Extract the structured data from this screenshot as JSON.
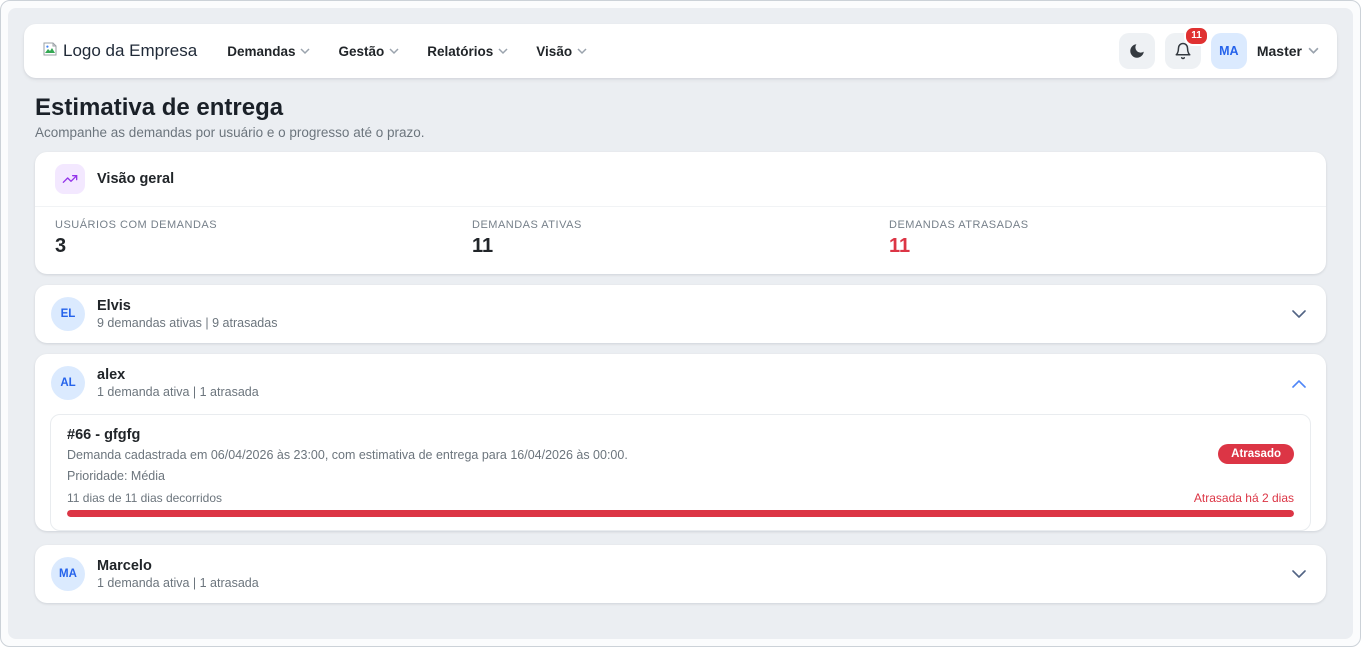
{
  "navbar": {
    "logo_alt": "Logo da Empresa",
    "menu": [
      {
        "label": "Demandas"
      },
      {
        "label": "Gestão"
      },
      {
        "label": "Relatórios"
      },
      {
        "label": "Visão"
      }
    ],
    "notifications_count": "11",
    "user_initials": "MA",
    "user_name": "Master"
  },
  "page": {
    "title": "Estimativa de entrega",
    "subtitle": "Acompanhe as demandas por usuário e o progresso até o prazo."
  },
  "overview": {
    "title": "Visão geral",
    "stats": [
      {
        "label": "USUÁRIOS COM DEMANDAS",
        "value": "3"
      },
      {
        "label": "DEMANDAS ATIVAS",
        "value": "11"
      },
      {
        "label": "DEMANDAS ATRASADAS",
        "value": "11"
      }
    ]
  },
  "users": [
    {
      "initials": "EL",
      "name": "Elvis",
      "summary": "9 demandas ativas | 9 atrasadas",
      "expanded": false
    },
    {
      "initials": "AL",
      "name": "alex",
      "summary": "1 demanda ativa | 1 atrasada",
      "expanded": true,
      "demand": {
        "title": "#66 - gfgfg",
        "description": "Demanda cadastrada em 06/04/2026 às 23:00, com estimativa de entrega para 16/04/2026 às 00:00.",
        "priority": "Prioridade: Média",
        "progress_label": "11 dias de 11 dias decorridos",
        "overdue_label": "Atrasada há 2 dias",
        "status_badge": "Atrasado",
        "progress_percent": 100
      }
    },
    {
      "initials": "MA",
      "name": "Marcelo",
      "summary": "1 demanda ativa | 1 atrasada",
      "expanded": false
    }
  ],
  "colors": {
    "accent_red": "#dc3545",
    "avatar_bg": "#dbeafe",
    "avatar_text": "#2563eb",
    "overview_icon_purple": "#9333ea",
    "overview_icon_bg": "#f3e8ff"
  }
}
